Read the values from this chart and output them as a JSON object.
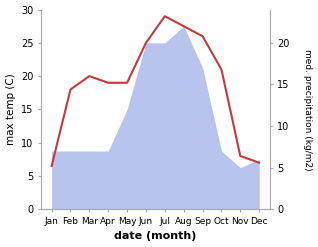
{
  "months": [
    "Jan",
    "Feb",
    "Mar",
    "Apr",
    "May",
    "Jun",
    "Jul",
    "Aug",
    "Sep",
    "Oct",
    "Nov",
    "Dec"
  ],
  "temperature": [
    6.5,
    18.0,
    20.0,
    19.0,
    19.0,
    25.0,
    29.0,
    27.5,
    26.0,
    21.0,
    8.0,
    7.0
  ],
  "precipitation_mm": [
    7,
    7,
    7,
    7,
    12,
    20,
    20,
    22,
    17,
    7,
    5,
    6
  ],
  "temp_ylim": [
    0,
    30
  ],
  "precip_ylim": [
    0,
    24
  ],
  "temp_color": "#c8393b",
  "precip_fill_color": "#b8c4ee",
  "xlabel": "date (month)",
  "ylabel_left": "max temp (C)",
  "ylabel_right": "med. precipitation (kg/m2)",
  "right_yticks": [
    0,
    5,
    10,
    15,
    20
  ],
  "left_yticks": [
    0,
    5,
    10,
    15,
    20,
    25,
    30
  ],
  "background_color": "#ffffff"
}
